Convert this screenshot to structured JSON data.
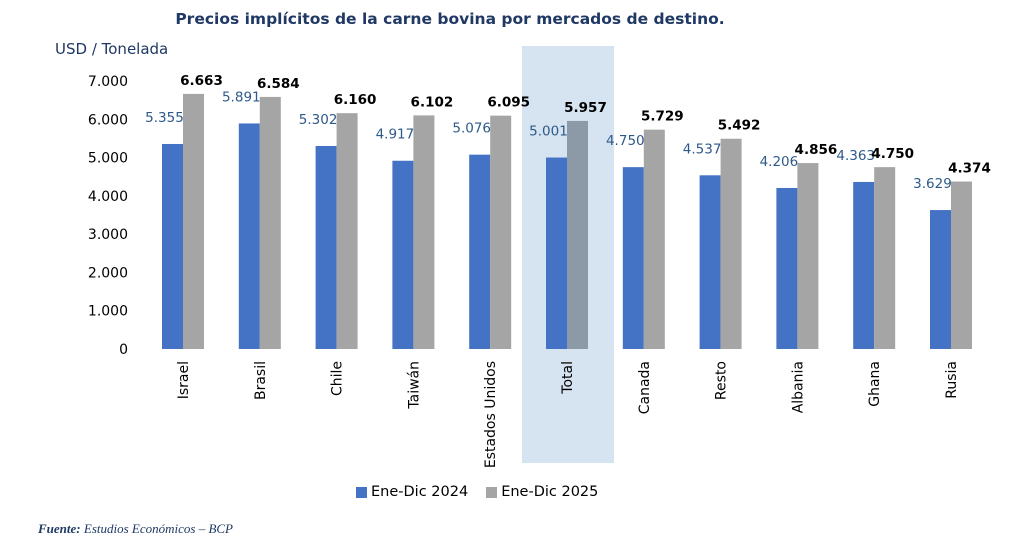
{
  "chart_data": {
    "type": "bar",
    "title": "Precios implícitos de la carne bovina por mercados de destino.",
    "ylabel": "USD / Tonelada",
    "xlabel": "",
    "ylim": [
      0,
      7000
    ],
    "yticks": [
      0,
      1000,
      2000,
      3000,
      4000,
      5000,
      6000,
      7000
    ],
    "ytick_labels": [
      "0",
      "1.000",
      "2.000",
      "3.000",
      "4.000",
      "5.000",
      "6.000",
      "7.000"
    ],
    "grid": false,
    "legend_position": "bottom",
    "highlighted_category": "Total",
    "categories": [
      "Israel",
      "Brasil",
      "Chile",
      "Taiwán",
      "Estados Unidos",
      "Total",
      "Canada",
      "Resto",
      "Albania",
      "Ghana",
      "Rusia"
    ],
    "series": [
      {
        "name": "Ene-Dic 2024",
        "color": "#4472c4",
        "values": [
          5355,
          5891,
          5302,
          4917,
          5076,
          5001,
          4750,
          4537,
          4206,
          4363,
          3629
        ],
        "labels": [
          "5.355",
          "5.891",
          "5.302",
          "4.917",
          "5.076",
          "5.001",
          "4.750",
          "4.537",
          "4.206",
          "4.363",
          "3.629"
        ]
      },
      {
        "name": "Ene-Dic 2025",
        "color": "#a5a5a5",
        "highlight_color": "#8c9aa8",
        "values": [
          6663,
          6584,
          6160,
          6102,
          6095,
          5957,
          5729,
          5492,
          4856,
          4750,
          4374
        ],
        "labels": [
          "6.663",
          "6.584",
          "6.160",
          "6.102",
          "6.095",
          "5.957",
          "5.729",
          "5.492",
          "4.856",
          "4.750",
          "4.374"
        ]
      }
    ],
    "highlight_band_color": "#d6e3f0"
  },
  "source": {
    "prefix": "Fuente:",
    "text": " Estudios Económicos – BCP"
  }
}
